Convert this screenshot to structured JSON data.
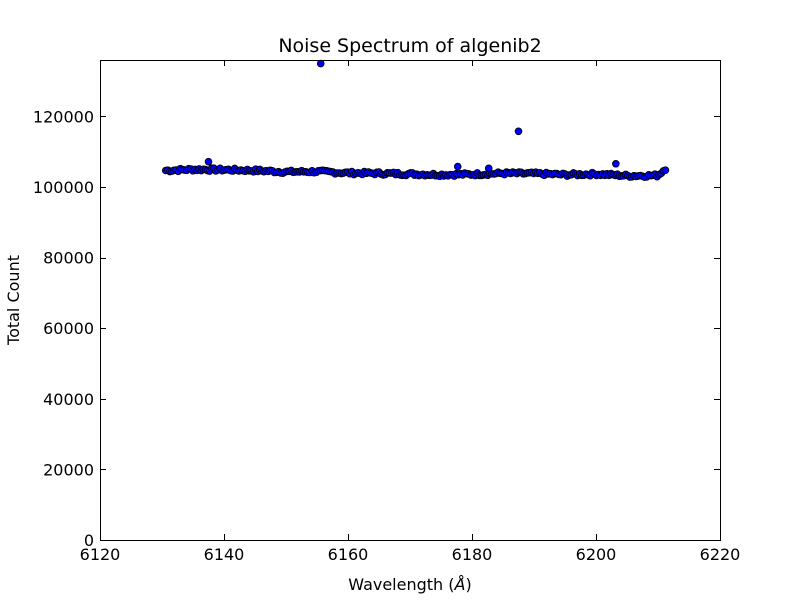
{
  "chart_data": {
    "type": "scatter",
    "title": "Noise Spectrum of algenib2",
    "xlabel": "Wavelength (",
    "xlabel_unit": "Å",
    "xlabel_close": ")",
    "ylabel": "Total Count",
    "xlim": [
      6120,
      6220
    ],
    "ylim": [
      0,
      136000
    ],
    "xticks": [
      6120,
      6140,
      6160,
      6180,
      6200,
      6220
    ],
    "yticks": [
      0,
      20000,
      40000,
      60000,
      80000,
      100000,
      120000
    ],
    "grid": false,
    "legend": "none",
    "marker_color": "#0000ff",
    "marker_edge_color": "#000000",
    "outliers": [
      {
        "x": 6137.5,
        "y": 107200
      },
      {
        "x": 6155.6,
        "y": 135000
      },
      {
        "x": 6177.7,
        "y": 105800
      },
      {
        "x": 6182.7,
        "y": 105300
      },
      {
        "x": 6187.5,
        "y": 115800
      },
      {
        "x": 6203.2,
        "y": 106600
      }
    ],
    "baseline": {
      "x_start": 6130.6,
      "x_end": 6211.2,
      "count": 240,
      "profile": [
        {
          "x": 6130.6,
          "y": 104700
        },
        {
          "x": 6135.0,
          "y": 105000
        },
        {
          "x": 6140.0,
          "y": 104900
        },
        {
          "x": 6145.0,
          "y": 104700
        },
        {
          "x": 6150.0,
          "y": 104300
        },
        {
          "x": 6155.0,
          "y": 104400
        },
        {
          "x": 6160.0,
          "y": 104000
        },
        {
          "x": 6165.0,
          "y": 103900
        },
        {
          "x": 6170.0,
          "y": 103700
        },
        {
          "x": 6175.0,
          "y": 103500
        },
        {
          "x": 6180.0,
          "y": 103600
        },
        {
          "x": 6185.0,
          "y": 103900
        },
        {
          "x": 6190.0,
          "y": 103800
        },
        {
          "x": 6195.0,
          "y": 103500
        },
        {
          "x": 6200.0,
          "y": 103700
        },
        {
          "x": 6205.0,
          "y": 103200
        },
        {
          "x": 6210.0,
          "y": 103300
        },
        {
          "x": 6211.2,
          "y": 105200
        }
      ]
    }
  }
}
